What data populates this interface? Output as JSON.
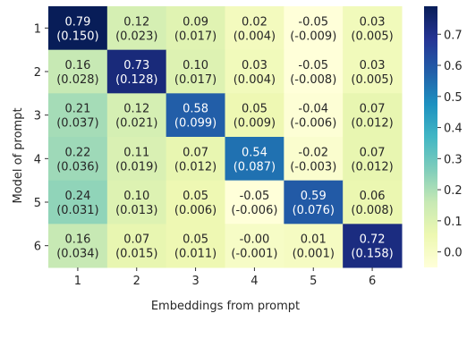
{
  "chart_data": {
    "type": "heatmap",
    "xlabel": "Embeddings from prompt",
    "ylabel": "Model of prompt",
    "x_categories": [
      "1",
      "2",
      "3",
      "4",
      "5",
      "6"
    ],
    "y_categories": [
      "1",
      "2",
      "3",
      "4",
      "5",
      "6"
    ],
    "values": [
      [
        0.79,
        0.12,
        0.09,
        0.02,
        -0.05,
        0.03
      ],
      [
        0.16,
        0.73,
        0.1,
        0.03,
        -0.05,
        0.03
      ],
      [
        0.21,
        0.12,
        0.58,
        0.05,
        -0.04,
        0.07
      ],
      [
        0.22,
        0.11,
        0.07,
        0.54,
        -0.02,
        0.07
      ],
      [
        0.24,
        0.1,
        0.05,
        -0.05,
        0.59,
        0.06
      ],
      [
        0.16,
        0.07,
        0.05,
        -0.0,
        0.01,
        0.72
      ]
    ],
    "annotations": [
      [
        [
          "0.79",
          "(0.150)"
        ],
        [
          "0.12",
          "(0.023)"
        ],
        [
          "0.09",
          "(0.017)"
        ],
        [
          "0.02",
          "(0.004)"
        ],
        [
          "-0.05",
          "(-0.009)"
        ],
        [
          "0.03",
          "(0.005)"
        ]
      ],
      [
        [
          "0.16",
          "(0.028)"
        ],
        [
          "0.73",
          "(0.128)"
        ],
        [
          "0.10",
          "(0.017)"
        ],
        [
          "0.03",
          "(0.004)"
        ],
        [
          "-0.05",
          "(-0.008)"
        ],
        [
          "0.03",
          "(0.005)"
        ]
      ],
      [
        [
          "0.21",
          "(0.037)"
        ],
        [
          "0.12",
          "(0.021)"
        ],
        [
          "0.58",
          "(0.099)"
        ],
        [
          "0.05",
          "(0.009)"
        ],
        [
          "-0.04",
          "(-0.006)"
        ],
        [
          "0.07",
          "(0.012)"
        ]
      ],
      [
        [
          "0.22",
          "(0.036)"
        ],
        [
          "0.11",
          "(0.019)"
        ],
        [
          "0.07",
          "(0.012)"
        ],
        [
          "0.54",
          "(0.087)"
        ],
        [
          "-0.02",
          "(-0.003)"
        ],
        [
          "0.07",
          "(0.012)"
        ]
      ],
      [
        [
          "0.24",
          "(0.031)"
        ],
        [
          "0.10",
          "(0.013)"
        ],
        [
          "0.05",
          "(0.006)"
        ],
        [
          "-0.05",
          "(-0.006)"
        ],
        [
          "0.59",
          "(0.076)"
        ],
        [
          "0.06",
          "(0.008)"
        ]
      ],
      [
        [
          "0.16",
          "(0.034)"
        ],
        [
          "0.07",
          "(0.015)"
        ],
        [
          "0.05",
          "(0.011)"
        ],
        [
          "-0.00",
          "(-0.001)"
        ],
        [
          "0.01",
          "(0.001)"
        ],
        [
          "0.72",
          "(0.158)"
        ]
      ]
    ],
    "colormap": "YlGnBu",
    "vmin": -0.05,
    "vmax": 0.79,
    "colorbar_ticks": [
      "0.0",
      "0.1",
      "0.2",
      "0.3",
      "0.4",
      "0.5",
      "0.6",
      "0.7"
    ]
  }
}
